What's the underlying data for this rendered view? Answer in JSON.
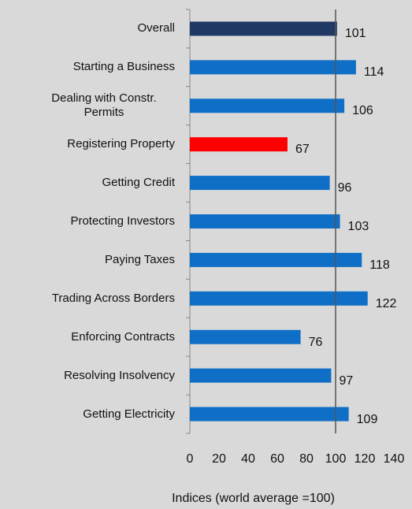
{
  "chart_data": {
    "type": "bar",
    "orientation": "horizontal",
    "categories": [
      "Overall",
      "Starting a Business",
      "Dealing with Constr. Permits",
      "Registering Property",
      "Getting Credit",
      "Protecting Investors",
      "Paying Taxes",
      "Trading Across Borders",
      "Enforcing Contracts",
      "Resolving Insolvency",
      "Getting Electricity"
    ],
    "values": [
      101,
      114,
      106,
      67,
      96,
      103,
      118,
      122,
      76,
      97,
      109
    ],
    "colors": [
      "#1f3864",
      "#0f6fc6",
      "#0f6fc6",
      "#ff0000",
      "#0f6fc6",
      "#0f6fc6",
      "#0f6fc6",
      "#0f6fc6",
      "#0f6fc6",
      "#0f6fc6",
      "#0f6fc6"
    ],
    "xlim": [
      0,
      140
    ],
    "xticks": [
      0,
      20,
      40,
      60,
      80,
      100,
      120,
      140
    ],
    "x_label": "Indices (world average =100)",
    "reference_line": 100
  }
}
